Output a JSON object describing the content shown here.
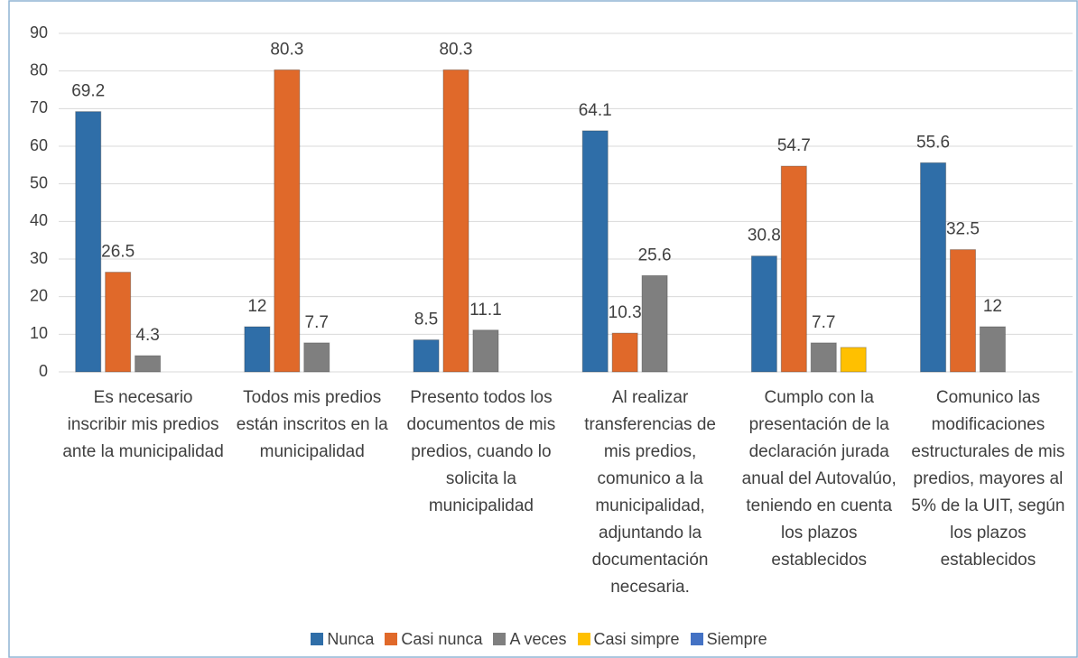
{
  "chart_data": {
    "type": "bar",
    "categories": [
      "Es necesario inscribir mis predios ante la municipalidad",
      "Todos mis predios están inscritos en la municipalidad",
      "Presento todos los documentos de mis predios, cuando lo solicita la municipalidad",
      "Al realizar transferencias de mis predios, comunico a la municipalidad, adjuntando la documentación necesaria.",
      "Cumplo con la presentación de la declaración jurada anual del Autovalúo, teniendo en cuenta los plazos establecidos",
      "Comunico las modificaciones estructurales de mis predios, mayores al 5% de la UIT, según los plazos establecidos"
    ],
    "series": [
      {
        "name": "Nunca",
        "color": "#2f6ea8",
        "values": [
          69.2,
          12,
          8.5,
          64.1,
          30.8,
          55.6
        ]
      },
      {
        "name": "Casi nunca",
        "color": "#e0692a",
        "values": [
          26.5,
          80.3,
          80.3,
          10.3,
          54.7,
          32.5
        ]
      },
      {
        "name": "A veces",
        "color": "#7f7f7f",
        "values": [
          4.3,
          7.7,
          11.1,
          25.6,
          7.7,
          12
        ]
      },
      {
        "name": "Casi simpre",
        "color": "#ffc000",
        "values": [
          null,
          null,
          null,
          null,
          6.5,
          null
        ],
        "data_labels": false
      },
      {
        "name": "Siempre",
        "color": "#4472c4",
        "values": [
          null,
          null,
          null,
          null,
          null,
          null
        ]
      }
    ],
    "ylim": [
      0,
      90
    ],
    "yticks": [
      0,
      10,
      20,
      30,
      40,
      50,
      60,
      70,
      80,
      90
    ],
    "grid": true,
    "legend": "bottom"
  }
}
